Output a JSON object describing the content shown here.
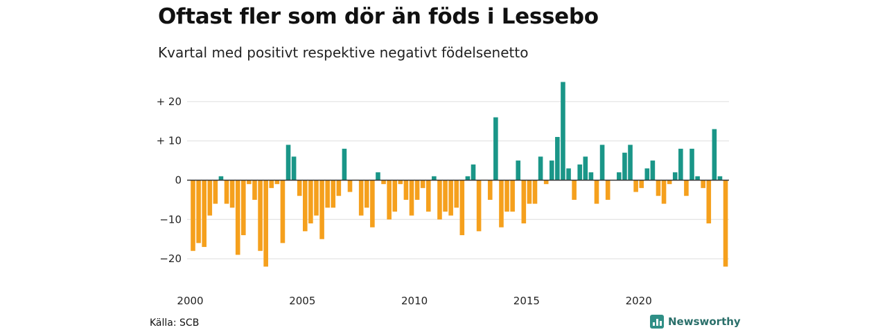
{
  "title": "Oftast fler som dör än föds i Lessebo",
  "subtitle": "Kvartal med positivt respektive negativt födelsenetto",
  "source": "Källa: SCB",
  "brand": "Newsworthy",
  "colors": {
    "positive": "#1a9688",
    "negative": "#f5a01d",
    "grid": "#dddddd",
    "zero": "#333333"
  },
  "chart_data": {
    "type": "bar",
    "title": "Oftast fler som dör än föds i Lessebo",
    "subtitle": "Kvartal med positivt respektive negativt födelsenetto",
    "x_start": "2000 Q1",
    "x_tick_labels": [
      "2000",
      "2005",
      "2010",
      "2015",
      "2020"
    ],
    "y_ticks": [
      20,
      10,
      0,
      -10,
      -20
    ],
    "y_tick_labels": [
      "+ 20",
      "+ 10",
      "0",
      "−10",
      "−20"
    ],
    "ylim": [
      -25,
      25
    ],
    "grid": true,
    "values": [
      -18,
      -16,
      -17,
      -9,
      -6,
      1,
      -6,
      -7,
      -19,
      -14,
      -1,
      -5,
      -18,
      -22,
      -2,
      -1,
      -16,
      9,
      6,
      -4,
      -13,
      -11,
      -9,
      -15,
      -7,
      -7,
      -4,
      8,
      -3,
      0,
      -9,
      -7,
      -12,
      2,
      -1,
      -10,
      -8,
      -1,
      -5,
      -9,
      -5,
      -2,
      -8,
      1,
      -10,
      -8,
      -9,
      -7,
      -14,
      1,
      4,
      -13,
      0,
      -5,
      16,
      -12,
      -8,
      -8,
      5,
      -11,
      -6,
      -6,
      6,
      -1,
      5,
      11,
      25,
      3,
      -5,
      4,
      6,
      2,
      -6,
      9,
      -5,
      0,
      2,
      7,
      9,
      -3,
      -2,
      3,
      5,
      -4,
      -6,
      -1,
      2,
      8,
      -4,
      8,
      1,
      -2,
      -11,
      13,
      1,
      -22
    ]
  }
}
